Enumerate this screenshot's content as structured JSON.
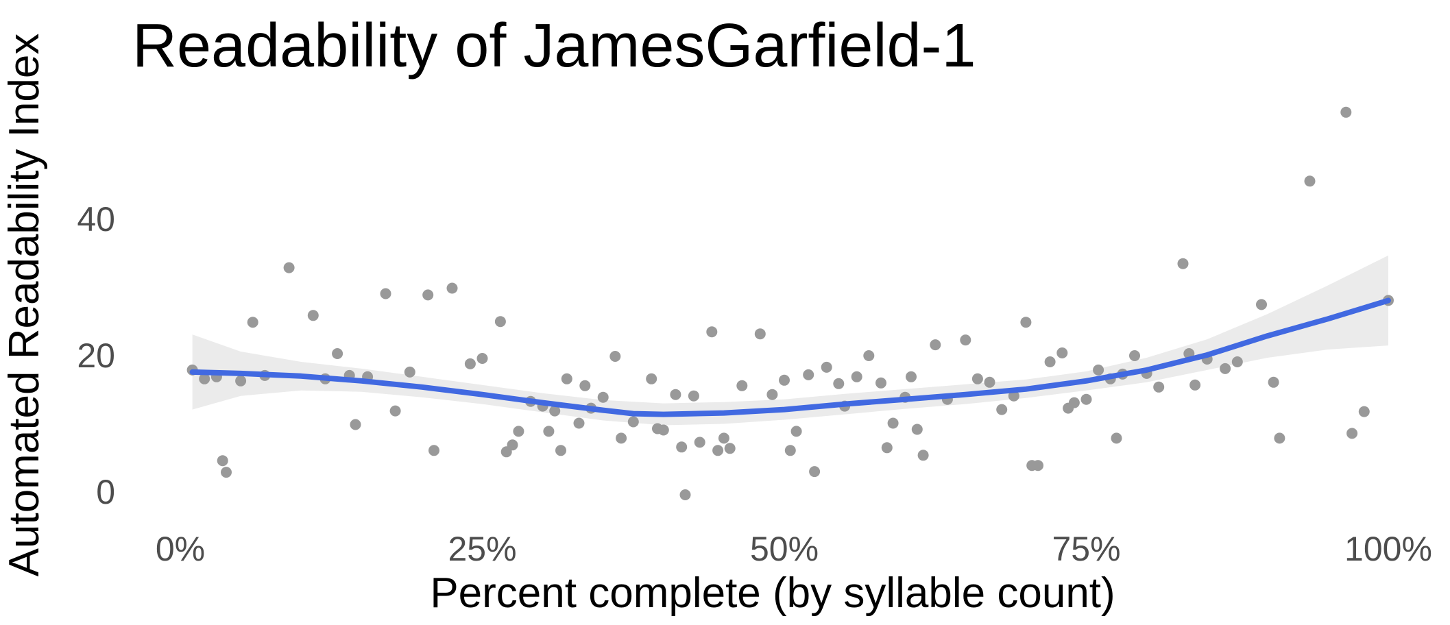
{
  "chart_data": {
    "type": "scatter",
    "title": "Readability of JamesGarfield-1",
    "xlabel": "Percent complete (by syllable count)",
    "ylabel": "Automated Readability Index",
    "xlim": [
      0,
      100
    ],
    "ylim": [
      -3,
      56
    ],
    "x_ticks": [
      {
        "value": 0,
        "label": "0%"
      },
      {
        "value": 25,
        "label": "25%"
      },
      {
        "value": 50,
        "label": "50%"
      },
      {
        "value": 75,
        "label": "75%"
      },
      {
        "value": 100,
        "label": "100%"
      }
    ],
    "y_ticks": [
      {
        "value": 0,
        "label": "0"
      },
      {
        "value": 20,
        "label": "20"
      },
      {
        "value": 40,
        "label": "40"
      }
    ],
    "grid": false,
    "colors": {
      "points": "#999999",
      "smooth_line": "#4169e1",
      "confidence_band": "#ebebeb"
    },
    "points": [
      [
        1.0,
        17.8
      ],
      [
        2.0,
        16.5
      ],
      [
        3.0,
        16.8
      ],
      [
        3.5,
        4.5
      ],
      [
        3.8,
        2.8
      ],
      [
        5.0,
        16.2
      ],
      [
        6.0,
        24.8
      ],
      [
        7.0,
        17.0
      ],
      [
        9.0,
        32.8
      ],
      [
        11.0,
        25.8
      ],
      [
        12.0,
        16.5
      ],
      [
        13.0,
        20.2
      ],
      [
        14.0,
        17.0
      ],
      [
        14.5,
        9.8
      ],
      [
        15.5,
        16.8
      ],
      [
        17.0,
        29.0
      ],
      [
        17.8,
        11.8
      ],
      [
        19.0,
        17.5
      ],
      [
        20.5,
        28.8
      ],
      [
        21.0,
        6.0
      ],
      [
        22.5,
        29.8
      ],
      [
        24.0,
        18.7
      ],
      [
        25.0,
        19.5
      ],
      [
        26.5,
        24.9
      ],
      [
        27.0,
        5.8
      ],
      [
        27.5,
        6.8
      ],
      [
        28.0,
        8.8
      ],
      [
        29.0,
        13.2
      ],
      [
        30.0,
        12.5
      ],
      [
        30.5,
        8.8
      ],
      [
        31.0,
        11.8
      ],
      [
        31.5,
        6.0
      ],
      [
        32.0,
        16.5
      ],
      [
        33.0,
        10.0
      ],
      [
        33.5,
        15.5
      ],
      [
        34.0,
        12.2
      ],
      [
        35.0,
        13.8
      ],
      [
        36.0,
        19.8
      ],
      [
        36.5,
        7.8
      ],
      [
        37.5,
        10.2
      ],
      [
        39.0,
        16.5
      ],
      [
        39.5,
        9.2
      ],
      [
        40.0,
        9.0
      ],
      [
        41.0,
        14.2
      ],
      [
        41.5,
        6.5
      ],
      [
        41.8,
        -0.5
      ],
      [
        42.5,
        14.0
      ],
      [
        43.0,
        7.2
      ],
      [
        44.0,
        23.4
      ],
      [
        44.5,
        6.0
      ],
      [
        45.0,
        7.8
      ],
      [
        45.5,
        6.3
      ],
      [
        46.5,
        15.5
      ],
      [
        48.0,
        23.1
      ],
      [
        49.0,
        14.2
      ],
      [
        50.0,
        16.3
      ],
      [
        50.5,
        6.0
      ],
      [
        51.0,
        8.8
      ],
      [
        52.0,
        17.1
      ],
      [
        52.5,
        2.9
      ],
      [
        53.5,
        18.2
      ],
      [
        54.5,
        15.8
      ],
      [
        55.0,
        12.5
      ],
      [
        56.0,
        16.8
      ],
      [
        57.0,
        19.9
      ],
      [
        58.0,
        15.9
      ],
      [
        58.5,
        6.4
      ],
      [
        59.0,
        10.0
      ],
      [
        60.0,
        13.8
      ],
      [
        60.5,
        16.8
      ],
      [
        61.0,
        9.1
      ],
      [
        61.5,
        5.3
      ],
      [
        62.5,
        21.5
      ],
      [
        63.5,
        13.5
      ],
      [
        65.0,
        22.2
      ],
      [
        66.0,
        16.5
      ],
      [
        67.0,
        16.0
      ],
      [
        68.0,
        12.0
      ],
      [
        69.0,
        14.0
      ],
      [
        70.0,
        24.8
      ],
      [
        70.5,
        3.8
      ],
      [
        71.0,
        3.8
      ],
      [
        72.0,
        19.0
      ],
      [
        73.0,
        20.3
      ],
      [
        73.5,
        12.2
      ],
      [
        74.0,
        13.0
      ],
      [
        75.0,
        13.5
      ],
      [
        76.0,
        17.8
      ],
      [
        77.0,
        16.5
      ],
      [
        77.5,
        7.8
      ],
      [
        78.0,
        17.2
      ],
      [
        79.0,
        19.9
      ],
      [
        80.0,
        17.3
      ],
      [
        81.0,
        15.3
      ],
      [
        83.0,
        33.4
      ],
      [
        83.5,
        20.2
      ],
      [
        84.0,
        15.6
      ],
      [
        85.0,
        19.4
      ],
      [
        86.5,
        18.0
      ],
      [
        87.5,
        19.0
      ],
      [
        89.5,
        27.4
      ],
      [
        90.5,
        16.0
      ],
      [
        91.0,
        7.8
      ],
      [
        93.5,
        45.5
      ],
      [
        96.5,
        55.6
      ],
      [
        97.0,
        8.5
      ],
      [
        98.0,
        11.7
      ],
      [
        100.0,
        28.0
      ]
    ],
    "smooth": [
      [
        1,
        17.5
      ],
      [
        5,
        17.3
      ],
      [
        10,
        16.9
      ],
      [
        15,
        16.2
      ],
      [
        20,
        15.3
      ],
      [
        25,
        14.2
      ],
      [
        30,
        13.0
      ],
      [
        35,
        11.9
      ],
      [
        37.5,
        11.4
      ],
      [
        40,
        11.3
      ],
      [
        45,
        11.5
      ],
      [
        50,
        12.0
      ],
      [
        55,
        12.8
      ],
      [
        60,
        13.5
      ],
      [
        65,
        14.2
      ],
      [
        70,
        15.0
      ],
      [
        75,
        16.2
      ],
      [
        80,
        17.8
      ],
      [
        85,
        20.0
      ],
      [
        90,
        22.8
      ],
      [
        95,
        25.3
      ],
      [
        100,
        28.0
      ]
    ],
    "band": [
      [
        1,
        12.0,
        23.0
      ],
      [
        5,
        14.0,
        20.5
      ],
      [
        10,
        14.8,
        19.0
      ],
      [
        15,
        14.6,
        18.0
      ],
      [
        20,
        13.8,
        16.8
      ],
      [
        25,
        12.8,
        15.6
      ],
      [
        30,
        11.6,
        14.4
      ],
      [
        35,
        10.4,
        13.4
      ],
      [
        40,
        9.7,
        12.9
      ],
      [
        45,
        9.9,
        13.1
      ],
      [
        50,
        10.5,
        13.5
      ],
      [
        55,
        11.3,
        14.3
      ],
      [
        60,
        12.1,
        15.0
      ],
      [
        65,
        12.8,
        15.7
      ],
      [
        70,
        13.7,
        16.4
      ],
      [
        75,
        14.8,
        17.6
      ],
      [
        80,
        16.0,
        19.6
      ],
      [
        85,
        17.8,
        22.3
      ],
      [
        90,
        19.6,
        26.0
      ],
      [
        95,
        20.8,
        30.2
      ],
      [
        100,
        21.4,
        34.6
      ]
    ]
  }
}
